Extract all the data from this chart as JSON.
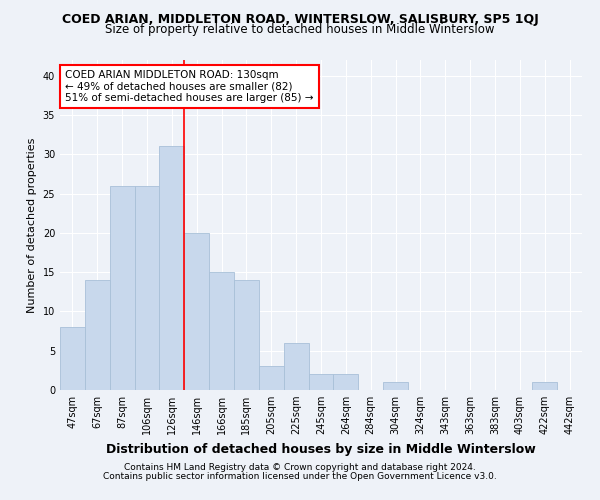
{
  "title": "COED ARIAN, MIDDLETON ROAD, WINTERSLOW, SALISBURY, SP5 1QJ",
  "subtitle": "Size of property relative to detached houses in Middle Winterslow",
  "xlabel": "Distribution of detached houses by size in Middle Winterslow",
  "ylabel": "Number of detached properties",
  "categories": [
    "47sqm",
    "67sqm",
    "87sqm",
    "106sqm",
    "126sqm",
    "146sqm",
    "166sqm",
    "185sqm",
    "205sqm",
    "225sqm",
    "245sqm",
    "264sqm",
    "284sqm",
    "304sqm",
    "324sqm",
    "343sqm",
    "363sqm",
    "383sqm",
    "403sqm",
    "422sqm",
    "442sqm"
  ],
  "values": [
    8,
    14,
    26,
    26,
    31,
    20,
    15,
    14,
    3,
    6,
    2,
    2,
    0,
    1,
    0,
    0,
    0,
    0,
    0,
    1,
    0
  ],
  "bar_color": "#c8d8ec",
  "bar_edgecolor": "#a8c0d8",
  "vline_x_idx": 4,
  "vline_color": "red",
  "annotation_text": "COED ARIAN MIDDLETON ROAD: 130sqm\n← 49% of detached houses are smaller (82)\n51% of semi-detached houses are larger (85) →",
  "annotation_box_color": "white",
  "annotation_box_edgecolor": "red",
  "ylim": [
    0,
    42
  ],
  "yticks": [
    0,
    5,
    10,
    15,
    20,
    25,
    30,
    35,
    40
  ],
  "footer1": "Contains HM Land Registry data © Crown copyright and database right 2024.",
  "footer2": "Contains public sector information licensed under the Open Government Licence v3.0.",
  "background_color": "#eef2f8",
  "grid_color": "white",
  "title_fontsize": 9,
  "subtitle_fontsize": 8.5,
  "ylabel_fontsize": 8,
  "xlabel_fontsize": 9,
  "tick_fontsize": 7,
  "annotation_fontsize": 7.5,
  "footer_fontsize": 6.5
}
